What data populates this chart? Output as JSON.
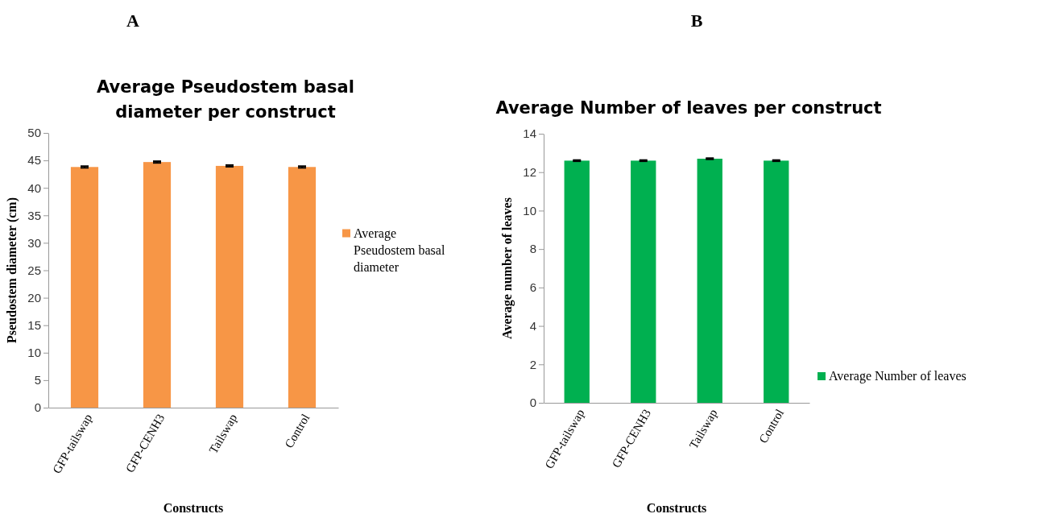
{
  "chart_data": [
    {
      "type": "bar",
      "title": "Average Pseudostem basal diameter per construct",
      "xlabel": "Constructs",
      "ylabel": "Pseudostem diameter (cm)",
      "annotations": [
        "A"
      ],
      "categories": [
        "GFP-tailswap",
        "GFP-CENH3",
        "Tailswap",
        "Control"
      ],
      "series": [
        {
          "name": "Average Pseudostem basal diameter",
          "color": "#f79646",
          "values": [
            43.8,
            44.7,
            44.0,
            43.8
          ],
          "errors": [
            0.15,
            0.15,
            0.15,
            0.15
          ]
        }
      ],
      "ylim": [
        0,
        50
      ],
      "yticks": [
        0,
        5,
        10,
        15,
        20,
        25,
        30,
        35,
        40,
        45,
        50
      ],
      "legend": "right"
    },
    {
      "type": "bar",
      "title": "Average Number of leaves per construct",
      "xlabel": "Constructs",
      "ylabel": "Average number of leaves",
      "annotations": [
        "B"
      ],
      "categories": [
        "GFP-tailswap",
        "GFP-CENH3",
        "Tailswap",
        "Control"
      ],
      "series": [
        {
          "name": "Average Number of leaves",
          "color": "#00b050",
          "values": [
            12.6,
            12.6,
            12.7,
            12.6
          ],
          "errors": [
            0.03,
            0.03,
            0.03,
            0.03
          ]
        }
      ],
      "ylim": [
        0,
        14
      ],
      "yticks": [
        0,
        2,
        4,
        6,
        8,
        10,
        12,
        14
      ],
      "legend": "right"
    }
  ]
}
